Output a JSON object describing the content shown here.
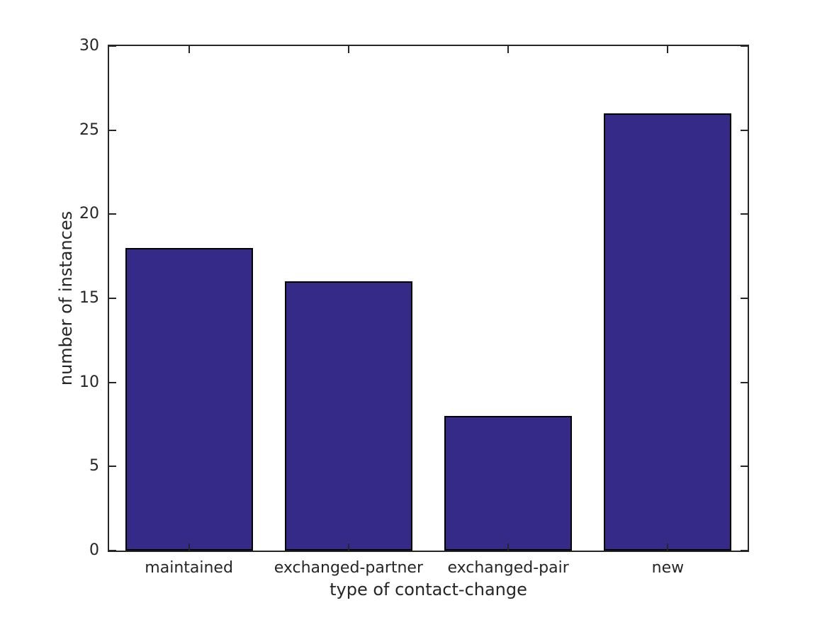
{
  "figure": {
    "background_color": "#ffffff",
    "axis_color": "#262626",
    "text_color": "#262626"
  },
  "chart_data": {
    "type": "bar",
    "categories": [
      "maintained",
      "exchanged-partner",
      "exchanged-pair",
      "new"
    ],
    "values": [
      18,
      16,
      8,
      26
    ],
    "xlabel": "type of contact-change",
    "ylabel": "number of instances",
    "ylim": [
      0,
      30
    ],
    "yticks": [
      0,
      5,
      10,
      15,
      20,
      25,
      30
    ],
    "grid": false,
    "legend": "none",
    "box": true,
    "tick_direction": "in",
    "bar_color": "#352a87",
    "bar_edge_color": "#000000",
    "bar_width_fraction": 0.8
  }
}
